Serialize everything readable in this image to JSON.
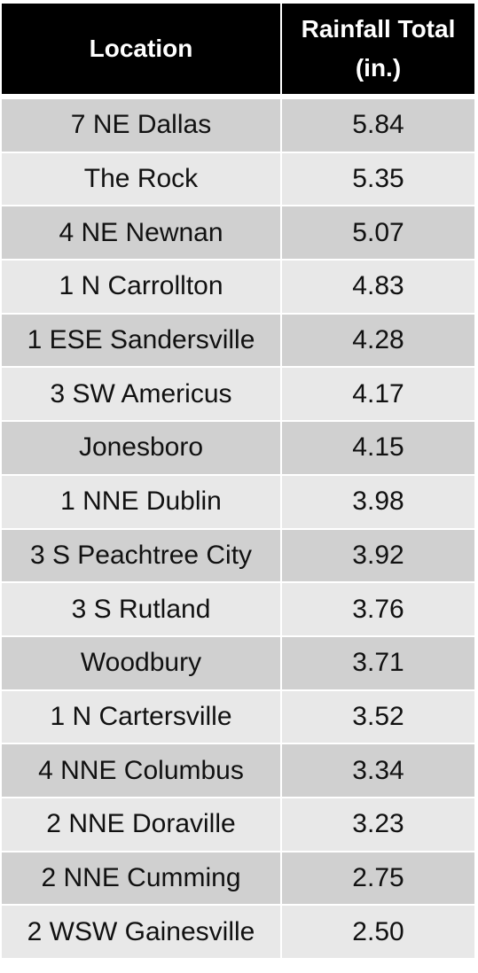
{
  "table": {
    "headers": [
      "Location",
      "Rainfall Total (in.)"
    ],
    "rows": [
      [
        "7 NE Dallas",
        "5.84"
      ],
      [
        "The Rock",
        "5.35"
      ],
      [
        "4 NE Newnan",
        "5.07"
      ],
      [
        "1 N Carrollton",
        "4.83"
      ],
      [
        "1 ESE Sandersville",
        "4.28"
      ],
      [
        "3 SW Americus",
        "4.17"
      ],
      [
        "Jonesboro",
        "4.15"
      ],
      [
        "1 NNE Dublin",
        "3.98"
      ],
      [
        "3 S Peachtree City",
        "3.92"
      ],
      [
        "3 S Rutland",
        "3.76"
      ],
      [
        "Woodbury",
        "3.71"
      ],
      [
        "1 N Cartersville",
        "3.52"
      ],
      [
        "4 NNE Columbus",
        "3.34"
      ],
      [
        "2 NNE Doraville",
        "3.23"
      ],
      [
        "2 NNE Cumming",
        "2.75"
      ],
      [
        "2 WSW Gainesville",
        "2.50"
      ]
    ]
  }
}
